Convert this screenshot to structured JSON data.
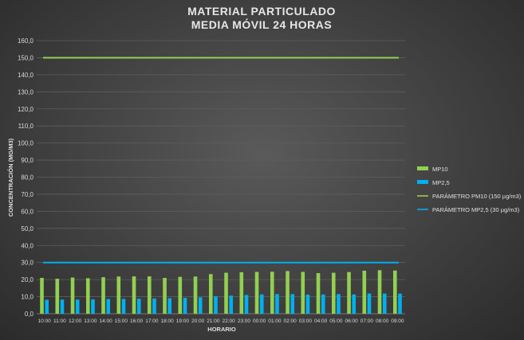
{
  "chart_data": {
    "type": "bar",
    "title": [
      "MATERIAL PARTICULADO",
      "MEDIA MÓVIL 24 HORAS"
    ],
    "xlabel": "HORARIO",
    "ylabel": "CONCENTRACIÓN (MG/M3)",
    "ylim": [
      0,
      160
    ],
    "yticks": [
      "0,0",
      "10,0",
      "20,0",
      "30,0",
      "40,0",
      "50,0",
      "60,0",
      "70,0",
      "80,0",
      "90,0",
      "100,0",
      "110,0",
      "120,0",
      "130,0",
      "140,0",
      "150,0",
      "160,0"
    ],
    "grid": true,
    "legend_position": "right",
    "categories": [
      "10:00",
      "11:00",
      "12:00",
      "13:00",
      "14:00",
      "15:00",
      "16:00",
      "17:00",
      "18:00",
      "19:00",
      "20:00",
      "21:00",
      "22:00",
      "23:00",
      "00:00",
      "01:00",
      "02:00",
      "03:00",
      "04:00",
      "05:00",
      "06:00",
      "07:00",
      "08:00",
      "09:00"
    ],
    "series": [
      {
        "name": "MP10",
        "kind": "bar",
        "color": "#92d050",
        "values": [
          21.0,
          20.5,
          21.2,
          20.8,
          21.4,
          21.8,
          21.9,
          21.9,
          21.0,
          21.6,
          21.8,
          23.2,
          24.0,
          24.3,
          24.5,
          24.6,
          25.0,
          24.5,
          23.8,
          24.0,
          24.4,
          25.2,
          25.5,
          25.3
        ]
      },
      {
        "name": "MP2,5",
        "kind": "bar",
        "color": "#00b0f0",
        "values": [
          8.2,
          8.3,
          8.3,
          8.4,
          8.6,
          8.7,
          8.8,
          8.9,
          9.1,
          9.3,
          9.6,
          10.2,
          10.6,
          11.0,
          11.3,
          11.5,
          11.5,
          11.2,
          11.3,
          11.5,
          11.3,
          11.8,
          11.8,
          11.8
        ]
      },
      {
        "name": "PARÁMETRO PM10 (150 µg/m3)",
        "kind": "line",
        "color": "#92d050",
        "value": 150
      },
      {
        "name": "PARÁMETRO MP2,5 (30 µg/m3)",
        "kind": "line",
        "color": "#00b0f0",
        "value": 30
      }
    ]
  }
}
